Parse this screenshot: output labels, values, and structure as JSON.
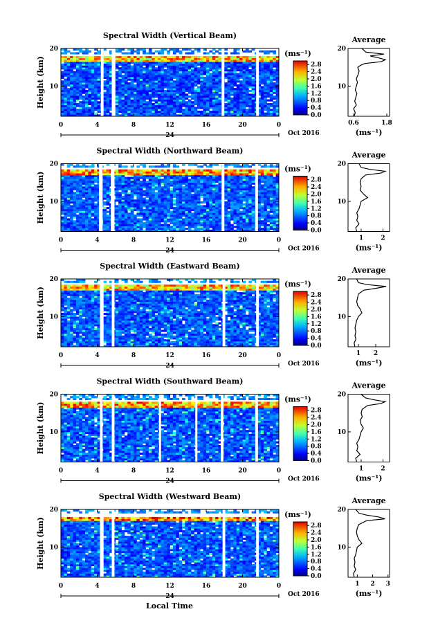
{
  "figure": {
    "xlabel": "Local Time",
    "colorbar": {
      "unit_label": "(ms⁻¹)",
      "ticks": [
        "2.8",
        "2.4",
        "2.0",
        "1.6",
        "1.2",
        "0.8",
        "0.4",
        "0.0"
      ],
      "range": [
        0,
        3.0
      ]
    }
  },
  "chart_data": [
    {
      "type": "heatmap",
      "title": "Spectral Width (Vertical Beam)",
      "ylabel": "Height (km)",
      "yticks": [
        "20",
        "10"
      ],
      "ylim": [
        2,
        20
      ],
      "xlim": [
        0,
        24
      ],
      "xticks": [
        "0",
        "4",
        "8",
        "12",
        "16",
        "20",
        "0"
      ],
      "date_label": "24",
      "month_label": "Oct 2016",
      "data_gaps_hours": [
        [
          4.4,
          4.7
        ],
        [
          5.6,
          6.0
        ],
        [
          17.7,
          18.0
        ],
        [
          21.5,
          21.8
        ]
      ],
      "band_value": 2.6,
      "band_km": [
        16.5,
        18.0
      ],
      "background_value": 0.55,
      "profile": {
        "title": "Average",
        "xlabel": "(ms⁻¹)",
        "xticks": [
          "0.6",
          "1.8"
        ],
        "xlim": [
          0.4,
          1.9
        ],
        "height_km": [
          2,
          3,
          4,
          5,
          6,
          7,
          8,
          9,
          10,
          11,
          12,
          13,
          14,
          15,
          15.5,
          16,
          16.5,
          17,
          17.5,
          18,
          18.5,
          19,
          20
        ],
        "width": [
          0.62,
          0.66,
          0.6,
          0.7,
          0.64,
          0.68,
          0.72,
          0.66,
          0.7,
          0.74,
          0.7,
          0.76,
          0.8,
          0.75,
          0.85,
          1.0,
          1.6,
          1.75,
          1.5,
          1.2,
          1.7,
          1.05,
          0.9
        ]
      }
    },
    {
      "type": "heatmap",
      "title": "Spectral Width (Northward Beam)",
      "ylabel": "Height (km)",
      "yticks": [
        "20",
        "10"
      ],
      "ylim": [
        2,
        20
      ],
      "xlim": [
        0,
        24
      ],
      "xticks": [
        "0",
        "4",
        "8",
        "12",
        "16",
        "20",
        "0"
      ],
      "date_label": "24",
      "month_label": "Oct 2016",
      "data_gaps_hours": [
        [
          4.2,
          4.6
        ],
        [
          5.5,
          5.9
        ],
        [
          17.7,
          18.0
        ],
        [
          21.4,
          21.7
        ]
      ],
      "band_value": 2.7,
      "band_km": [
        17.0,
        18.5
      ],
      "background_value": 0.6,
      "profile": {
        "title": "Average",
        "xlabel": "(ms⁻¹)",
        "xticks": [
          "1",
          "2"
        ],
        "xlim": [
          0.4,
          2.3
        ],
        "height_km": [
          2,
          3,
          4,
          5,
          6,
          7,
          8,
          9,
          10,
          11,
          12,
          13,
          14,
          15,
          16,
          17,
          17.5,
          18,
          18.5,
          19,
          20
        ],
        "width": [
          0.8,
          0.75,
          0.9,
          0.8,
          0.85,
          0.8,
          0.9,
          0.95,
          1.0,
          1.3,
          1.1,
          0.95,
          1.0,
          0.95,
          1.0,
          1.2,
          1.9,
          2.1,
          1.4,
          1.0,
          0.9
        ]
      }
    },
    {
      "type": "heatmap",
      "title": "Spectral Width (Eastward Beam)",
      "ylabel": "Height (km)",
      "yticks": [
        "20",
        "10"
      ],
      "ylim": [
        2,
        20
      ],
      "xlim": [
        0,
        24
      ],
      "xticks": [
        "0",
        "4",
        "8",
        "12",
        "16",
        "20",
        "0"
      ],
      "date_label": "24",
      "month_label": "Oct 2016",
      "data_gaps_hours": [
        [
          4.3,
          4.7
        ],
        [
          5.6,
          5.9
        ],
        [
          17.8,
          18.1
        ],
        [
          21.5,
          21.8
        ]
      ],
      "band_value": 2.6,
      "band_km": [
        17.0,
        18.5
      ],
      "background_value": 0.6,
      "profile": {
        "title": "Average",
        "xlabel": "(ms⁻¹)",
        "xticks": [
          "1",
          "2"
        ],
        "xlim": [
          0.4,
          2.8
        ],
        "height_km": [
          2,
          3,
          4,
          5,
          6,
          7,
          8,
          9,
          10,
          11,
          12,
          13,
          14,
          15,
          16,
          17,
          17.5,
          18,
          18.5,
          19,
          20
        ],
        "width": [
          0.8,
          0.75,
          0.85,
          0.8,
          0.85,
          0.8,
          0.85,
          0.9,
          1.0,
          1.2,
          1.1,
          0.95,
          0.9,
          0.95,
          1.0,
          1.3,
          2.0,
          2.6,
          1.5,
          1.0,
          0.9
        ]
      }
    },
    {
      "type": "heatmap",
      "title": "Spectral Width (Southward Beam)",
      "ylabel": "Height (km)",
      "yticks": [
        "20",
        "10"
      ],
      "ylim": [
        2,
        20
      ],
      "xlim": [
        0,
        24
      ],
      "xticks": [
        "0",
        "4",
        "8",
        "12",
        "16",
        "20",
        "0"
      ],
      "date_label": "24",
      "month_label": "Oct 2016",
      "data_gaps_hours": [
        [
          4.3,
          4.6
        ],
        [
          5.6,
          5.9
        ],
        [
          10.8,
          11.0
        ],
        [
          14.8,
          15.0
        ],
        [
          17.6,
          17.9
        ],
        [
          21.4,
          21.7
        ]
      ],
      "band_value": 2.7,
      "band_km": [
        16.5,
        18.0
      ],
      "background_value": 0.6,
      "profile": {
        "title": "Average",
        "xlabel": "(ms⁻¹)",
        "xticks": [
          "1",
          "2"
        ],
        "xlim": [
          0.4,
          2.3
        ],
        "height_km": [
          2,
          3,
          4,
          5,
          6,
          7,
          8,
          9,
          10,
          11,
          12,
          13,
          14,
          15,
          16,
          17,
          17.5,
          18,
          18.5,
          19,
          20
        ],
        "width": [
          0.8,
          0.75,
          0.95,
          0.8,
          0.85,
          0.8,
          0.9,
          0.95,
          1.0,
          1.1,
          1.0,
          0.95,
          1.05,
          1.0,
          1.05,
          1.3,
          1.9,
          2.1,
          1.6,
          1.2,
          1.0
        ]
      }
    },
    {
      "type": "heatmap",
      "title": "Spectral Width (Westward Beam)",
      "ylabel": "Height (km)",
      "yticks": [
        "20",
        "10"
      ],
      "ylim": [
        2,
        20
      ],
      "xlim": [
        0,
        24
      ],
      "xticks": [
        "0",
        "4",
        "8",
        "12",
        "16",
        "20",
        "0"
      ],
      "date_label": "24",
      "month_label": "Oct 2016",
      "data_gaps_hours": [
        [
          4.3,
          4.7
        ],
        [
          5.6,
          5.9
        ],
        [
          17.8,
          18.1
        ],
        [
          21.5,
          21.8
        ]
      ],
      "band_value": 2.8,
      "band_km": [
        17.0,
        18.2
      ],
      "background_value": 0.6,
      "profile": {
        "title": "Average",
        "xlabel": "(ms⁻¹)",
        "xticks": [
          "1",
          "2",
          "3"
        ],
        "xlim": [
          0.4,
          3.1
        ],
        "height_km": [
          2,
          3,
          4,
          5,
          6,
          7,
          8,
          9,
          10,
          11,
          12,
          13,
          14,
          15,
          16,
          17,
          17.5,
          18,
          18.5,
          19,
          20
        ],
        "width": [
          0.8,
          0.75,
          0.9,
          0.8,
          0.85,
          0.8,
          0.9,
          0.95,
          1.0,
          1.3,
          1.1,
          1.0,
          0.95,
          1.0,
          1.1,
          1.6,
          2.8,
          2.4,
          1.6,
          1.1,
          0.9
        ]
      }
    }
  ]
}
